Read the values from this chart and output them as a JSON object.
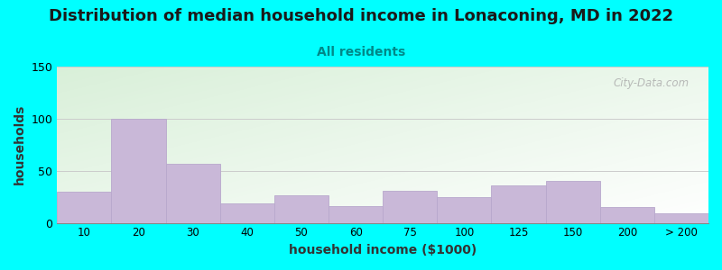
{
  "title": "Distribution of median household income in Lonaconing, MD in 2022",
  "subtitle": "All residents",
  "xlabel": "household income ($1000)",
  "ylabel": "households",
  "background_outer": "#00FFFF",
  "bar_color": "#C9B8D8",
  "bar_edge_color": "#B8A8CC",
  "categories": [
    "10",
    "20",
    "30",
    "40",
    "50",
    "60",
    "75",
    "100",
    "125",
    "150",
    "200",
    "> 200"
  ],
  "values": [
    30,
    100,
    57,
    19,
    26,
    16,
    31,
    25,
    36,
    40,
    15,
    9
  ],
  "bar_lefts": [
    0,
    1,
    2,
    3,
    4,
    5,
    6,
    7,
    8,
    9,
    10,
    11
  ],
  "ylim": [
    0,
    150
  ],
  "yticks": [
    0,
    50,
    100,
    150
  ],
  "title_fontsize": 13,
  "subtitle_fontsize": 10,
  "axis_label_fontsize": 10,
  "title_color": "#1a1a1a",
  "subtitle_color": "#008888",
  "watermark_text": "City-Data.com",
  "grad_top_color": "#d8eec8",
  "grad_bottom_color": "#f8fff4"
}
